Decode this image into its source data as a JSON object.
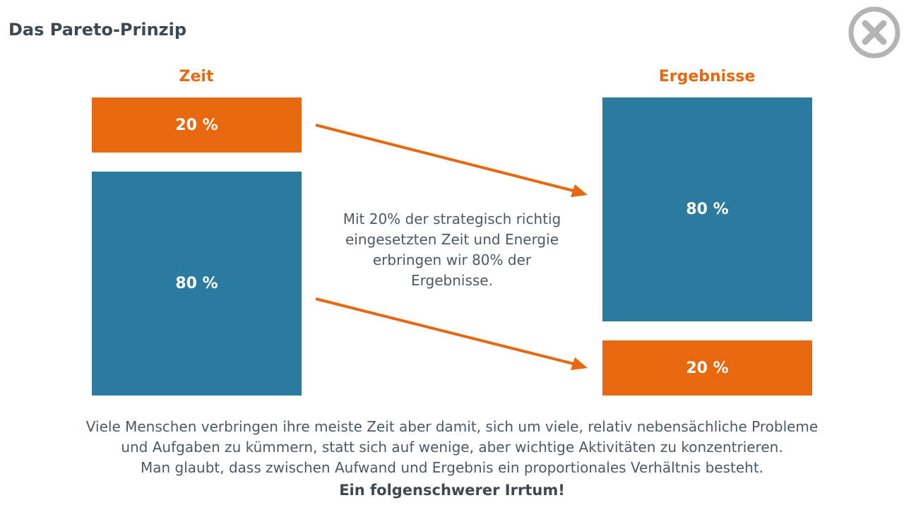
{
  "title": "Das Pareto-Prinzip",
  "close_icon": "close-circle-icon",
  "colors": {
    "orange": "#e8680f",
    "blue": "#2b7aa0",
    "text": "#4f5962"
  },
  "left": {
    "label": "Zeit",
    "top_box": "20 %",
    "bottom_box": "80 %"
  },
  "right": {
    "label": "Ergebnisse",
    "top_box": "80 %",
    "bottom_box": "20 %"
  },
  "center_text": [
    "Mit 20% der strategisch richtig",
    "eingesetzten Zeit und Energie",
    "erbringen wir 80% der",
    "Ergebnisse."
  ],
  "bottom_text": [
    "Viele Menschen verbringen ihre meiste Zeit aber damit, sich um viele, relativ nebensächliche Probleme",
    "und Aufgaben zu kümmern, statt sich auf wenige, aber wichtige Aktivitäten zu konzentrieren.",
    "Man glaubt, dass zwischen Aufwand und Ergebnis ein proportionales Verhältnis besteht."
  ],
  "conclusion": "Ein folgenschwerer Irrtum!"
}
